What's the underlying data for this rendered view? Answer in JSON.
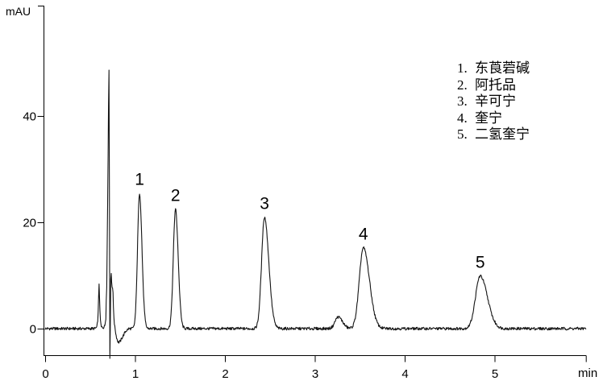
{
  "figure": {
    "y_unit": "mAU",
    "x_unit": "min"
  },
  "legend": {
    "items": [
      {
        "num": "1.",
        "label": "东莨菪碱"
      },
      {
        "num": "2.",
        "label": "阿托品"
      },
      {
        "num": "3.",
        "label": "辛可宁"
      },
      {
        "num": "4.",
        "label": "奎宁"
      },
      {
        "num": "5.",
        "label": "二氢奎宁"
      }
    ]
  },
  "chart_data": {
    "type": "line",
    "kind": "hplc-chromatogram",
    "title": "",
    "xlabel": "min",
    "ylabel": "mAU",
    "xlim": [
      0,
      6.02
    ],
    "ylim": [
      -5.6,
      61
    ],
    "x_ticks": [
      0,
      1,
      2,
      3,
      4,
      5
    ],
    "y_ticks": [
      0,
      20,
      40
    ],
    "grid": false,
    "legend_position": "upper right",
    "line_color": "#141414",
    "peaks": [
      {
        "label": "1",
        "name": "东莨菪碱",
        "rt_min": 1.05,
        "height_mau": 25.5,
        "sigma_l": 0.022,
        "sigma_r": 0.027
      },
      {
        "label": "2",
        "name": "阿托品",
        "rt_min": 1.45,
        "height_mau": 22.5,
        "sigma_l": 0.024,
        "sigma_r": 0.03
      },
      {
        "label": "3",
        "name": "辛可宁",
        "rt_min": 2.44,
        "height_mau": 21.0,
        "sigma_l": 0.032,
        "sigma_r": 0.048
      },
      {
        "label": "4",
        "name": "奎宁",
        "rt_min": 3.54,
        "height_mau": 15.2,
        "sigma_l": 0.045,
        "sigma_r": 0.068
      },
      {
        "label": "5",
        "name": "二氢奎宁",
        "rt_min": 4.84,
        "height_mau": 9.9,
        "sigma_l": 0.052,
        "sigma_r": 0.08
      }
    ],
    "unlabeled_peaks": [
      {
        "rt_min": 3.26,
        "height_mau": 2.2,
        "sigma_l": 0.035,
        "sigma_r": 0.048
      }
    ],
    "injection_front_anchors": [
      [
        0.55,
        0.0
      ],
      [
        0.575,
        0.2
      ],
      [
        0.588,
        2.0
      ],
      [
        0.6,
        8.5
      ],
      [
        0.612,
        2.0
      ],
      [
        0.624,
        0.3
      ],
      [
        0.648,
        0.2
      ],
      [
        0.664,
        0.5
      ],
      [
        0.675,
        2.0
      ],
      [
        0.682,
        7.0
      ],
      [
        0.686,
        8.0
      ],
      [
        0.696,
        25.0
      ],
      [
        0.706,
        44.0
      ],
      [
        0.713,
        52.5
      ],
      [
        0.7155,
        20.0
      ],
      [
        0.718,
        -6.5
      ],
      [
        0.7215,
        -6.8
      ],
      [
        0.724,
        -2.0
      ],
      [
        0.728,
        6.0
      ],
      [
        0.7315,
        11.8
      ],
      [
        0.738,
        9.2
      ],
      [
        0.744,
        8.0
      ],
      [
        0.753,
        7.6
      ],
      [
        0.76,
        4.0
      ],
      [
        0.768,
        1.2
      ],
      [
        0.775,
        0.3
      ],
      [
        0.79,
        -1.3
      ],
      [
        0.805,
        -2.3
      ],
      [
        0.818,
        -2.6
      ],
      [
        0.835,
        -2.4
      ],
      [
        0.86,
        -1.6
      ],
      [
        0.895,
        -0.5
      ],
      [
        0.93,
        0.0
      ]
    ],
    "baseline_mau": 0,
    "noise_mau": 0.27
  }
}
